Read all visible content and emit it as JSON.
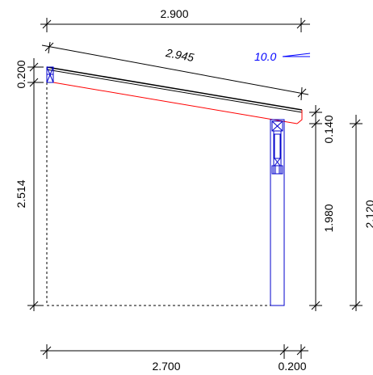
{
  "dimensions": {
    "top_width": "2.900",
    "rafter_length": "2.945",
    "left_top_height": "0.200",
    "left_total_height": "2.514",
    "right_beam_height": "0.140",
    "right_post_height": "1.980",
    "right_total_height": "2.120",
    "bottom_span": "2.700",
    "bottom_post_width": "0.200"
  },
  "slope": {
    "value": "10.0"
  },
  "colors": {
    "dimension": "#000000",
    "rafter_bottom": "#ff0000",
    "structure": "#0000cc",
    "annotation": "#0000ff"
  }
}
